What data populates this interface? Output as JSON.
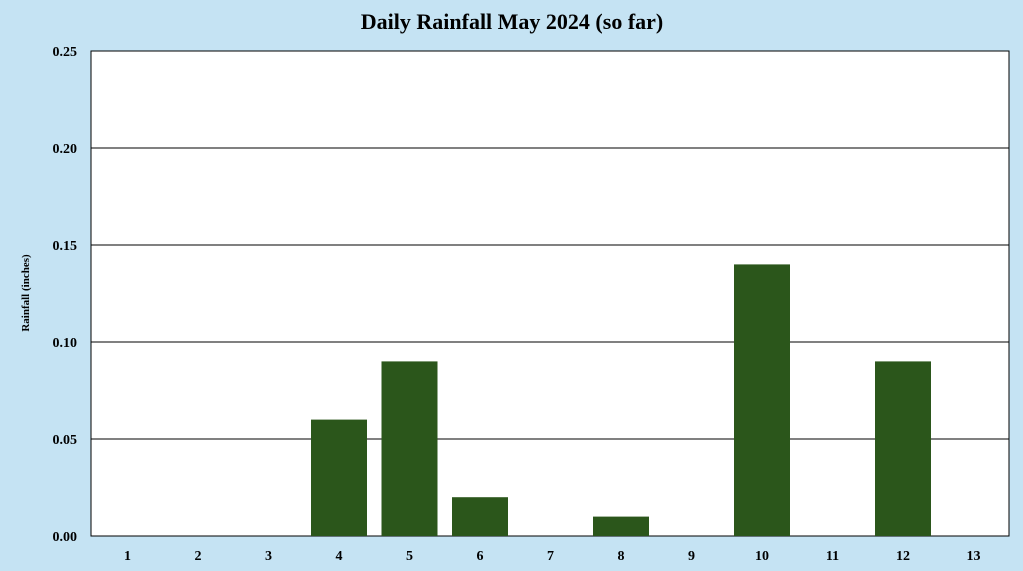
{
  "chart_data": {
    "type": "bar",
    "title": "Daily Rainfall May 2024 (so far)",
    "xlabel": "",
    "ylabel": "Rainfall (inches)",
    "categories": [
      "1",
      "2",
      "3",
      "4",
      "5",
      "6",
      "7",
      "8",
      "9",
      "10",
      "11",
      "12",
      "13"
    ],
    "values": [
      0,
      0,
      0,
      0.06,
      0.09,
      0.02,
      0,
      0.01,
      0,
      0.14,
      0,
      0.09,
      0
    ],
    "ylim": [
      0,
      0.25
    ],
    "yticks": [
      "0.00",
      "0.05",
      "0.10",
      "0.15",
      "0.20",
      "0.25"
    ],
    "grid": true,
    "colors": {
      "bar": "#2b561b",
      "plot_background": "#ffffff",
      "page_background": "#c5e3f3",
      "gridline": "#000000"
    }
  }
}
